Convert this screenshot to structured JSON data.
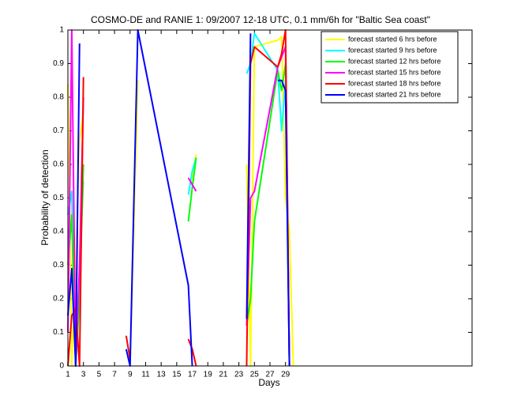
{
  "chart_data": {
    "type": "line",
    "title": "COSMO-DE and RANIE 1: 09/2007 12-18 UTC, 0.1 mm/6h for \"Baltic Sea coast\"",
    "x_label": "Days",
    "y_label": "Probability of detection",
    "x": [
      1,
      1.5,
      2,
      2.5,
      3,
      3.5,
      4,
      8.5,
      9,
      10,
      16.5,
      17,
      17.5,
      18,
      24,
      24.5,
      25,
      28,
      28.5,
      29,
      29.5,
      30,
      30.5
    ],
    "series": [
      {
        "name": "forecast started 6 hrs before",
        "color": "#ffff00",
        "values": [
          0.84,
          0.0,
          0.3,
          0.67,
          0.76,
          null,
          null,
          null,
          0.0,
          0.85,
          null,
          0.55,
          0.63,
          null,
          0.6,
          0.0,
          0.95,
          0.97,
          0.98,
          0.5,
          0.4,
          0.0,
          null
        ]
      },
      {
        "name": "forecast started 9 hrs before",
        "color": "#00ffff",
        "values": [
          0.45,
          0.52,
          0.0,
          0.3,
          0.55,
          null,
          null,
          null,
          null,
          null,
          0.51,
          0.58,
          0.62,
          null,
          0.87,
          0.9,
          0.99,
          0.88,
          0.7,
          0.85,
          0.0,
          null,
          null
        ]
      },
      {
        "name": "forecast started 12 hrs before",
        "color": "#00ff00",
        "values": [
          0.3,
          0.45,
          0.0,
          0.2,
          0.6,
          null,
          null,
          null,
          null,
          null,
          0.43,
          0.53,
          0.62,
          null,
          0.12,
          0.2,
          0.43,
          0.88,
          0.82,
          0.9,
          0.0,
          null,
          null
        ]
      },
      {
        "name": "forecast started 15 hrs before",
        "color": "#ff00ff",
        "values": [
          0.1,
          1.0,
          0.0,
          0.3,
          0.8,
          null,
          null,
          null,
          null,
          null,
          0.56,
          0.54,
          0.52,
          null,
          0.12,
          0.5,
          0.52,
          0.89,
          0.92,
          0.95,
          0.0,
          null,
          null
        ]
      },
      {
        "name": "forecast started 18 hrs before",
        "color": "#ff0000",
        "values": [
          0.0,
          0.15,
          0.17,
          0.0,
          0.86,
          null,
          null,
          0.09,
          0.02,
          null,
          0.08,
          0.05,
          0.0,
          null,
          0.0,
          0.9,
          0.95,
          0.89,
          0.93,
          1.0,
          0.0,
          null,
          null
        ]
      },
      {
        "name": "forecast started 21 hrs before",
        "color": "#0000ff",
        "values": [
          0.15,
          0.29,
          0.0,
          0.96,
          null,
          null,
          null,
          0.05,
          0.0,
          1.0,
          0.24,
          0.0,
          null,
          null,
          0.14,
          0.99,
          null,
          0.85,
          0.85,
          0.82,
          0.0,
          null,
          null
        ]
      }
    ],
    "xlim": [
      1,
      53
    ],
    "xticks": [
      1,
      3,
      5,
      7,
      9,
      11,
      13,
      15,
      17,
      19,
      21,
      23,
      25,
      27,
      29
    ],
    "ylim": [
      0,
      1
    ],
    "yticks": [
      0,
      0.1,
      0.2,
      0.3,
      0.4,
      0.5,
      0.6,
      0.7,
      0.8,
      0.9,
      1
    ],
    "grid": false,
    "legend_position": "upper-right"
  }
}
